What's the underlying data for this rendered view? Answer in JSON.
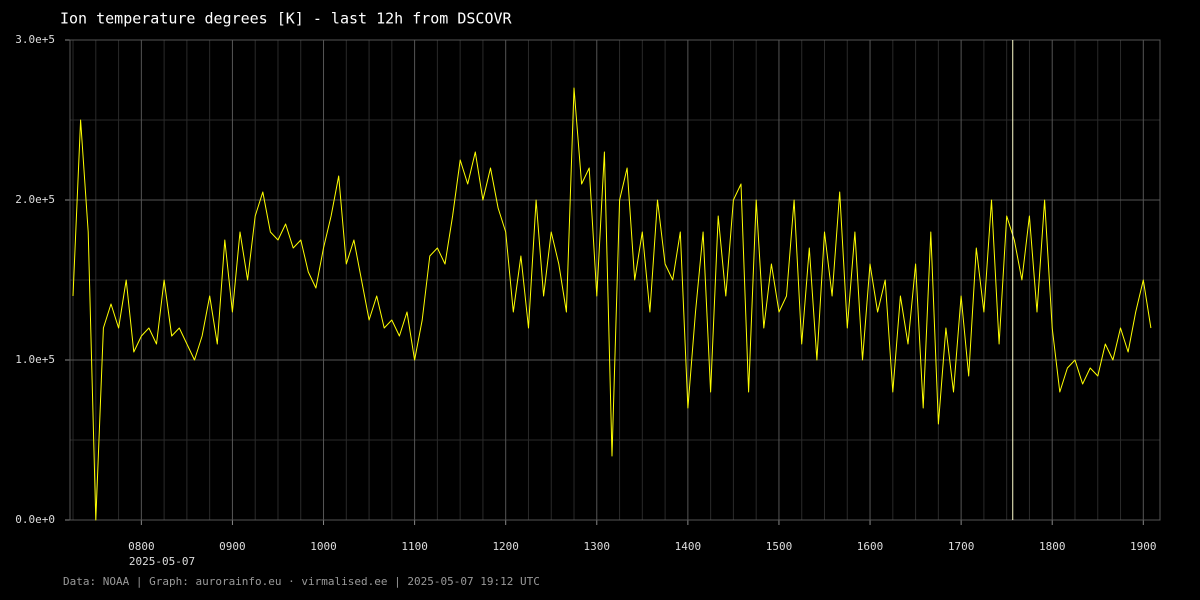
{
  "chart_data": {
    "type": "line",
    "title": "Ion temperature degrees [K] - last 12h from DSCOVR",
    "x_date_label": "2025-05-07",
    "footer": "Data: NOAA | Graph: aurorainfo.eu · virmalised.ee | 2025-05-07 19:12 UTC",
    "x": [
      "0715",
      "0720",
      "0725",
      "0730",
      "0735",
      "0740",
      "0745",
      "0750",
      "0755",
      "0800",
      "0805",
      "0810",
      "0815",
      "0820",
      "0825",
      "0830",
      "0835",
      "0840",
      "0845",
      "0850",
      "0855",
      "0900",
      "0905",
      "0910",
      "0915",
      "0920",
      "0925",
      "0930",
      "0935",
      "0940",
      "0945",
      "0950",
      "0955",
      "1000",
      "1005",
      "1010",
      "1015",
      "1020",
      "1025",
      "1030",
      "1035",
      "1040",
      "1045",
      "1050",
      "1055",
      "1100",
      "1105",
      "1110",
      "1115",
      "1120",
      "1125",
      "1130",
      "1135",
      "1140",
      "1145",
      "1150",
      "1155",
      "1200",
      "1205",
      "1210",
      "1215",
      "1220",
      "1225",
      "1230",
      "1235",
      "1240",
      "1245",
      "1250",
      "1255",
      "1300",
      "1305",
      "1310",
      "1315",
      "1320",
      "1325",
      "1330",
      "1335",
      "1340",
      "1345",
      "1350",
      "1355",
      "1400",
      "1405",
      "1410",
      "1415",
      "1420",
      "1425",
      "1430",
      "1435",
      "1440",
      "1445",
      "1450",
      "1455",
      "1500",
      "1505",
      "1510",
      "1515",
      "1520",
      "1525",
      "1530",
      "1535",
      "1540",
      "1545",
      "1550",
      "1555",
      "1600",
      "1605",
      "1610",
      "1615",
      "1620",
      "1625",
      "1630",
      "1635",
      "1640",
      "1645",
      "1650",
      "1655",
      "1700",
      "1705",
      "1710",
      "1715",
      "1720",
      "1725",
      "1730",
      "1735",
      "1740",
      "1745",
      "1750",
      "1755",
      "1800",
      "1805",
      "1810",
      "1815",
      "1820",
      "1825",
      "1830",
      "1835",
      "1840",
      "1845",
      "1850",
      "1855",
      "1900",
      "1905"
    ],
    "series": [
      {
        "name": "Ion temperature",
        "color": "#ffff00",
        "values": [
          140000,
          250000,
          180000,
          0,
          120000,
          135000,
          120000,
          150000,
          105000,
          115000,
          120000,
          110000,
          150000,
          115000,
          120000,
          110000,
          100000,
          115000,
          140000,
          110000,
          175000,
          130000,
          180000,
          150000,
          190000,
          205000,
          180000,
          175000,
          185000,
          170000,
          175000,
          155000,
          145000,
          170000,
          190000,
          215000,
          160000,
          175000,
          150000,
          125000,
          140000,
          120000,
          125000,
          115000,
          130000,
          100000,
          125000,
          165000,
          170000,
          160000,
          190000,
          225000,
          210000,
          230000,
          200000,
          220000,
          195000,
          180000,
          130000,
          165000,
          120000,
          200000,
          140000,
          180000,
          160000,
          130000,
          270000,
          210000,
          220000,
          140000,
          230000,
          40000,
          200000,
          220000,
          150000,
          180000,
          130000,
          200000,
          160000,
          150000,
          180000,
          70000,
          130000,
          180000,
          80000,
          190000,
          140000,
          200000,
          210000,
          80000,
          200000,
          120000,
          160000,
          130000,
          140000,
          200000,
          110000,
          170000,
          100000,
          180000,
          140000,
          205000,
          120000,
          180000,
          100000,
          160000,
          130000,
          150000,
          80000,
          140000,
          110000,
          160000,
          70000,
          180000,
          60000,
          120000,
          80000,
          140000,
          90000,
          170000,
          130000,
          200000,
          110000,
          190000,
          175000,
          150000,
          190000,
          130000,
          200000,
          120000,
          80000,
          95000,
          100000,
          85000,
          95000,
          90000,
          110000,
          100000,
          120000,
          105000,
          130000,
          150000,
          120000
        ]
      }
    ],
    "xlim": [
      "0713",
      "1911"
    ],
    "xticks": [
      "0800",
      "0900",
      "1000",
      "1100",
      "1200",
      "1300",
      "1400",
      "1500",
      "1600",
      "1700",
      "1800",
      "1900"
    ],
    "xminorticks": [
      "0715",
      "0730",
      "0745",
      "0815",
      "0830",
      "0845",
      "0915",
      "0930",
      "0945",
      "1015",
      "1030",
      "1045",
      "1115",
      "1130",
      "1145",
      "1215",
      "1230",
      "1245",
      "1315",
      "1330",
      "1345",
      "1415",
      "1430",
      "1445",
      "1515",
      "1530",
      "1545",
      "1615",
      "1630",
      "1645",
      "1715",
      "1730",
      "1745",
      "1815",
      "1830",
      "1845"
    ],
    "ylim": [
      0,
      300000
    ],
    "yticks": [
      {
        "value": 0,
        "label": "0.0e+0"
      },
      {
        "value": 100000,
        "label": "1.0e+5"
      },
      {
        "value": 200000,
        "label": "2.0e+5"
      },
      {
        "value": 300000,
        "label": "3.0e+5"
      }
    ],
    "yminorticks": [
      50000,
      150000,
      250000
    ],
    "vlines": [
      "1734"
    ],
    "vline_color": "#ffffcc",
    "grid": true
  }
}
